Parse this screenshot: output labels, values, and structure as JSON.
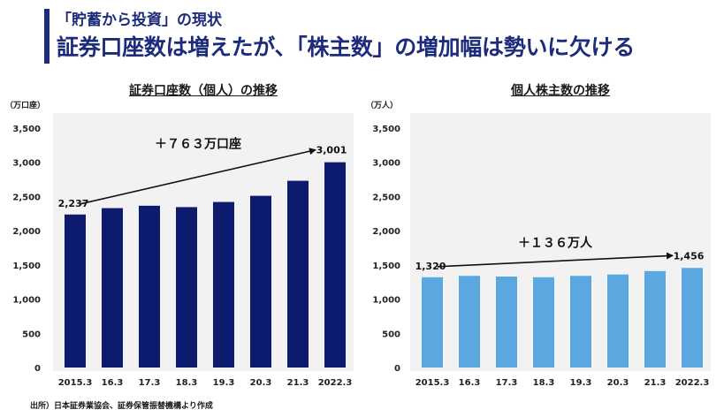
{
  "header": {
    "subtitle": "「貯蓄から投資」の現状",
    "title": "証券口座数は増えたが、「株主数」の増加幅は勢いに欠ける"
  },
  "source": "出所）日本証券業協会、証券保管振替機構より作成",
  "chart_data": [
    {
      "type": "bar",
      "title": "証券口座数（個人）の推移",
      "unit": "（万口座）",
      "categories": [
        "2015.3",
        "16.3",
        "17.3",
        "18.3",
        "19.3",
        "20.3",
        "21.3",
        "2022.3"
      ],
      "values": [
        2237,
        2330,
        2365,
        2345,
        2420,
        2510,
        2730,
        3001
      ],
      "ylim": [
        0,
        3500
      ],
      "yticks": [
        "3,500",
        "3,000",
        "2,500",
        "2,000",
        "1,500",
        "1,000",
        "500",
        "0"
      ],
      "ytick_values": [
        3500,
        3000,
        2500,
        2000,
        1500,
        1000,
        500,
        0
      ],
      "data_labels": {
        "first": "2,237",
        "last": "3,001"
      },
      "annotation": "＋７６３万口座",
      "color": "#0d1b6e"
    },
    {
      "type": "bar",
      "title": "個人株主数の推移",
      "unit": "（万人）",
      "categories": [
        "2015.3",
        "16.3",
        "17.3",
        "18.3",
        "19.3",
        "20.3",
        "21.3",
        "2022.3"
      ],
      "values": [
        1320,
        1340,
        1330,
        1320,
        1340,
        1360,
        1410,
        1456
      ],
      "ylim": [
        0,
        3500
      ],
      "yticks": [
        "3,500",
        "3,000",
        "2,500",
        "2,000",
        "1,500",
        "1,000",
        "500",
        "0"
      ],
      "ytick_values": [
        3500,
        3000,
        2500,
        2000,
        1500,
        1000,
        500,
        0
      ],
      "data_labels": {
        "first": "1,320",
        "last": "1,456"
      },
      "annotation": "＋１３６万人",
      "color": "#5ba8e0"
    }
  ]
}
